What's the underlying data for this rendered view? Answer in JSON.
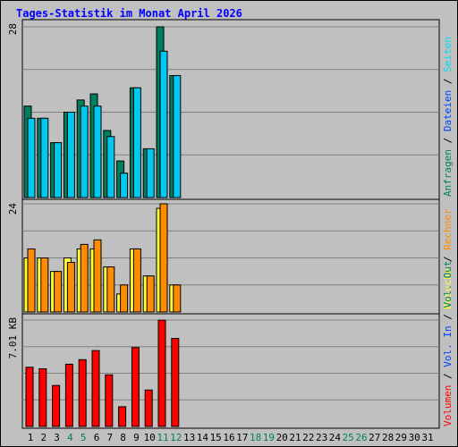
{
  "chart_data": {
    "type": "bar",
    "title": "Tages-Statistik im Monat April 2026",
    "colors": {
      "anfragen": "#007f5f",
      "dateien": "#00c8f0",
      "seiten": "#00e0f0",
      "besuche": "#ffff33",
      "rechner": "#ff8c00",
      "vol_out": "#007f5f",
      "vol_in": "#0040ff",
      "volumen": "#ff0000",
      "panel_bg": "#c0c0c0",
      "grid": "#808080",
      "title": "#0000ff",
      "weekend_day": "#00805f",
      "weekday_day": "#000000"
    },
    "days": [
      "1",
      "2",
      "3",
      "4",
      "5",
      "6",
      "7",
      "8",
      "9",
      "10",
      "11",
      "12",
      "13",
      "14",
      "15",
      "16",
      "17",
      "18",
      "19",
      "20",
      "21",
      "22",
      "23",
      "24",
      "25",
      "26",
      "27",
      "28",
      "29",
      "30",
      "31"
    ],
    "weekend_days": [
      "4",
      "5",
      "11",
      "12",
      "18",
      "19",
      "25",
      "26"
    ],
    "top_panel": {
      "max_label": "28",
      "ylim": [
        0,
        28
      ],
      "legend": [
        {
          "label": "Anfragen",
          "color_key": "anfragen"
        },
        {
          "label": "Dateien",
          "color_key": "vol_in"
        },
        {
          "label": "Seiten",
          "color_key": "seiten"
        }
      ],
      "series": [
        {
          "name": "Anfragen",
          "values": [
            15,
            13,
            9,
            14,
            16,
            17,
            11,
            6,
            18,
            8,
            28,
            20,
            0,
            0,
            0,
            0,
            0,
            0,
            0,
            0,
            0,
            0,
            0,
            0,
            0,
            0,
            0,
            0,
            0,
            0,
            0
          ]
        },
        {
          "name": "Dateien",
          "values": [
            13,
            13,
            9,
            14,
            15,
            15,
            10,
            4,
            18,
            8,
            24,
            20,
            0,
            0,
            0,
            0,
            0,
            0,
            0,
            0,
            0,
            0,
            0,
            0,
            0,
            0,
            0,
            0,
            0,
            0,
            0
          ]
        }
      ]
    },
    "middle_panel": {
      "max_label": "24",
      "ylim": [
        0,
        24
      ],
      "legend": [
        {
          "label": "Besuche",
          "color_key": "besuche"
        },
        {
          "label": "Rechner",
          "color_key": "rechner"
        }
      ],
      "series": [
        {
          "name": "Besuche",
          "values": [
            12,
            12,
            9,
            12,
            14,
            14,
            10,
            4,
            14,
            8,
            23,
            6,
            0,
            0,
            0,
            0,
            0,
            0,
            0,
            0,
            0,
            0,
            0,
            0,
            0,
            0,
            0,
            0,
            0,
            0,
            0
          ]
        },
        {
          "name": "Rechner",
          "values": [
            14,
            12,
            9,
            11,
            15,
            16,
            10,
            6,
            14,
            8,
            24,
            6,
            0,
            0,
            0,
            0,
            0,
            0,
            0,
            0,
            0,
            0,
            0,
            0,
            0,
            0,
            0,
            0,
            0,
            0,
            0
          ]
        }
      ]
    },
    "bottom_panel": {
      "max_label": "7.01 KB",
      "ylim": [
        0,
        7.01
      ],
      "unit": "KB",
      "legend": [
        {
          "label": "Volumen",
          "color_key": "volumen"
        },
        {
          "label": "Vol. In",
          "color_key": "vol_in"
        },
        {
          "label": "Vol. Out",
          "color_key": "vol_out"
        }
      ],
      "series": [
        {
          "name": "Volumen",
          "values": [
            3.9,
            3.8,
            2.7,
            4.1,
            4.4,
            5.0,
            3.4,
            1.3,
            5.2,
            2.4,
            7.0,
            5.8,
            0,
            0,
            0,
            0,
            0,
            0,
            0,
            0,
            0,
            0,
            0,
            0,
            0,
            0,
            0,
            0,
            0,
            0,
            0
          ]
        }
      ]
    }
  }
}
